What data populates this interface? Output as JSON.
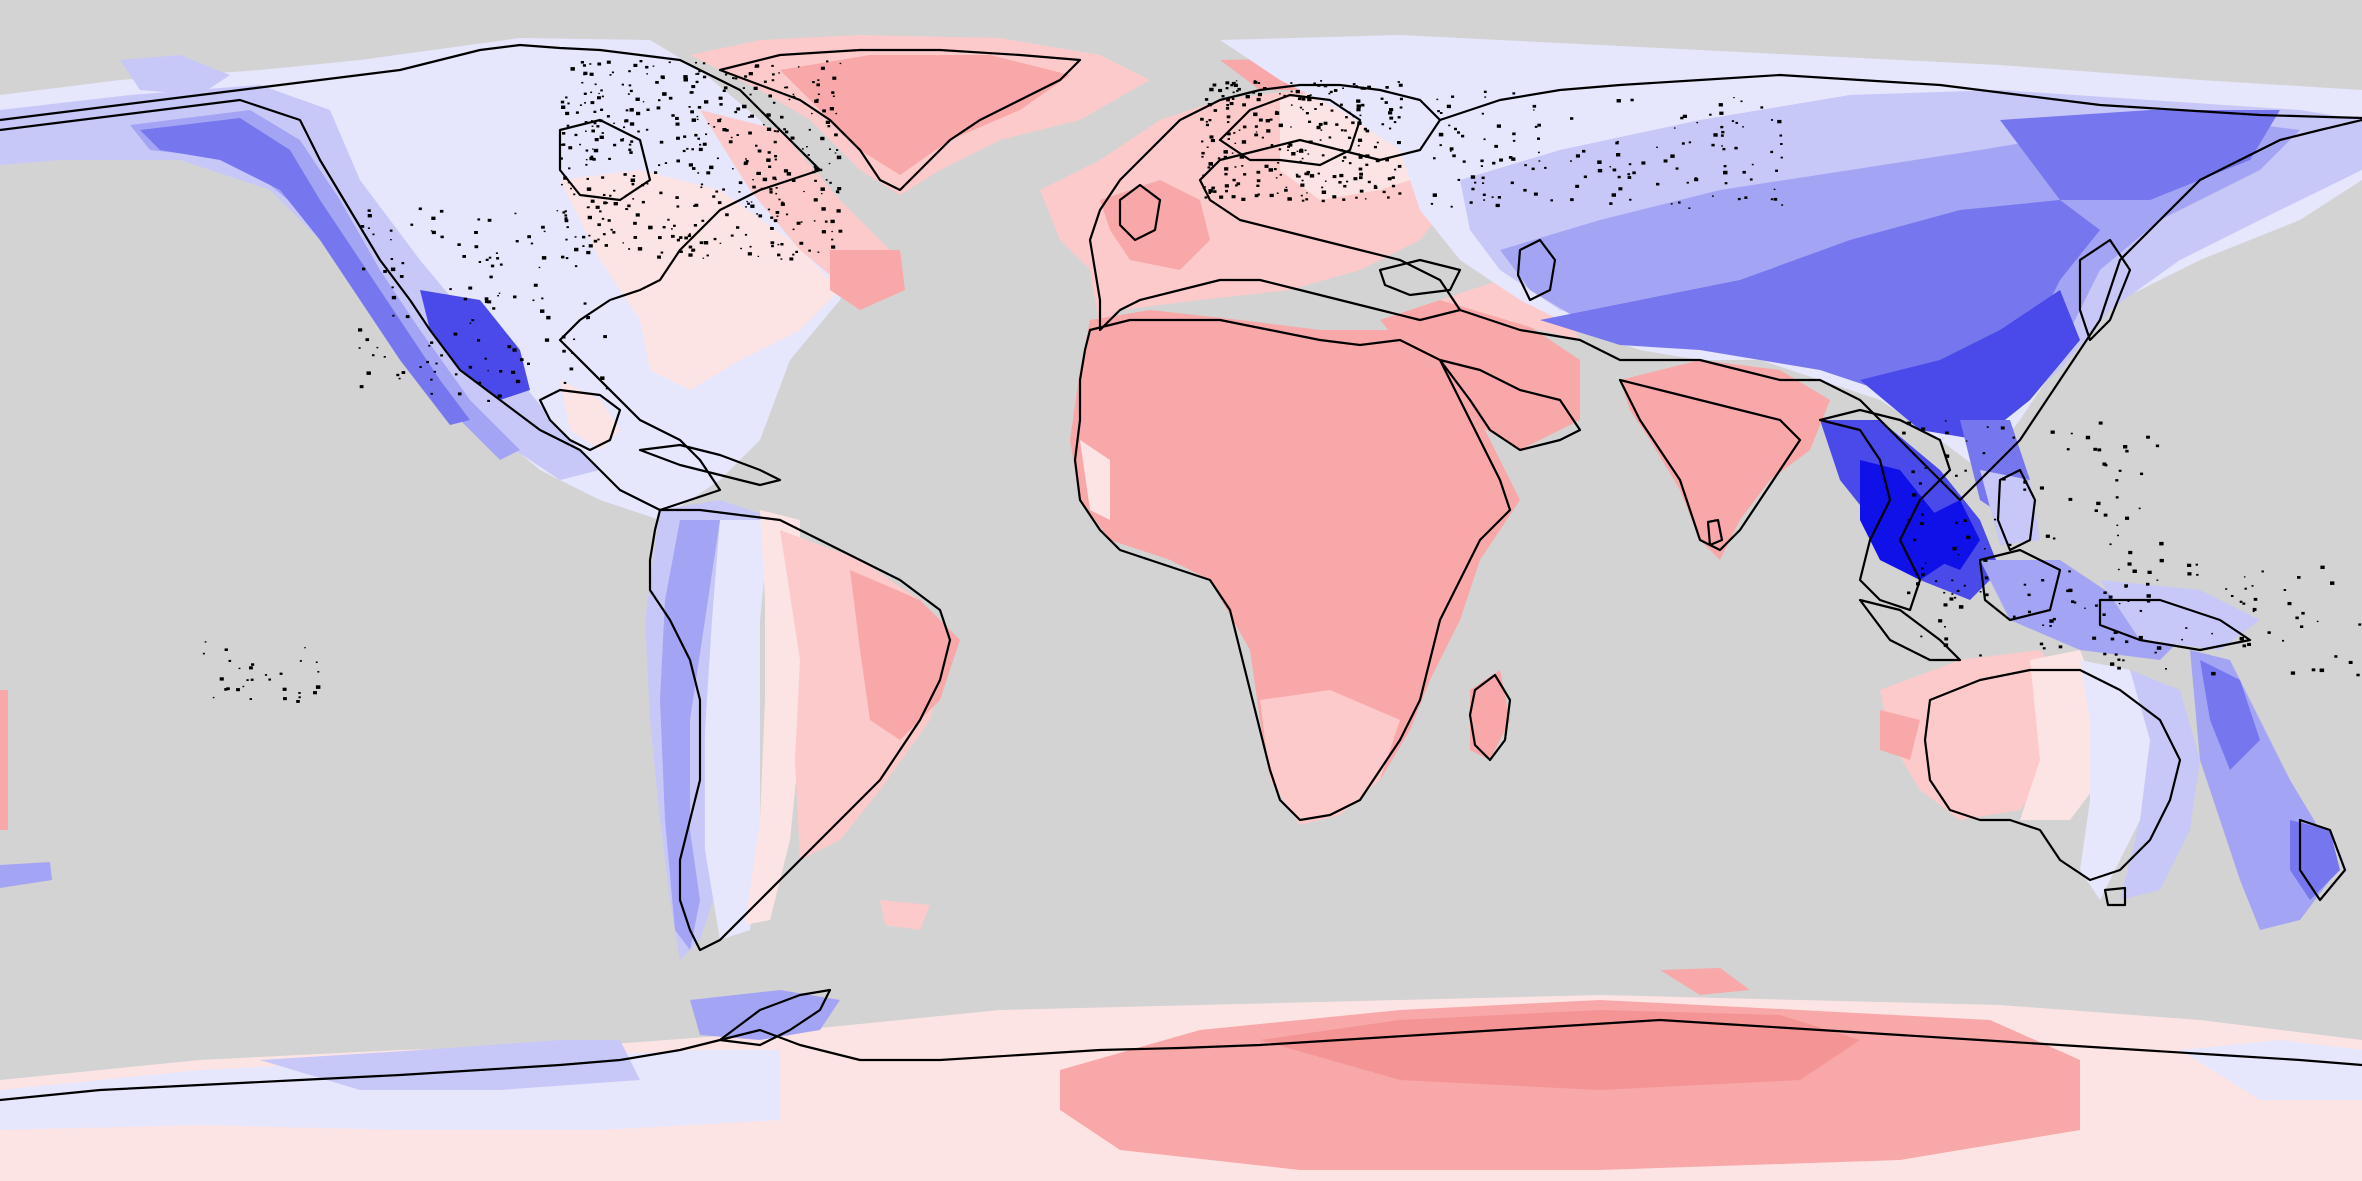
{
  "map": {
    "projection": "equirectangular",
    "ocean_color": "#d3d3d3",
    "coastline_color": "#000000",
    "legend": null,
    "title": null
  },
  "palette": {
    "strong_blue": "#1010e8",
    "blue_1": "#4a4aea",
    "blue_2": "#7676ee",
    "blue_3": "#a4a4f4",
    "blue_4": "#c8c8f8",
    "blue_5": "#e6e6fc",
    "pink_light": "#fde4e4",
    "pink_1": "#fccaca",
    "pink_2": "#f8a8a8",
    "pink_3": "#f49494"
  },
  "regions": [
    {
      "name": "north-america",
      "tone": "blue"
    },
    {
      "name": "greenland",
      "tone": "pink"
    },
    {
      "name": "south-america",
      "tone": "mixed"
    },
    {
      "name": "europe",
      "tone": "pink"
    },
    {
      "name": "africa",
      "tone": "pink"
    },
    {
      "name": "asia",
      "tone": "blue"
    },
    {
      "name": "india",
      "tone": "pink"
    },
    {
      "name": "southeast-asia",
      "tone": "strong_blue"
    },
    {
      "name": "australia",
      "tone": "mixed"
    },
    {
      "name": "antarctica",
      "tone": "mixed"
    }
  ]
}
